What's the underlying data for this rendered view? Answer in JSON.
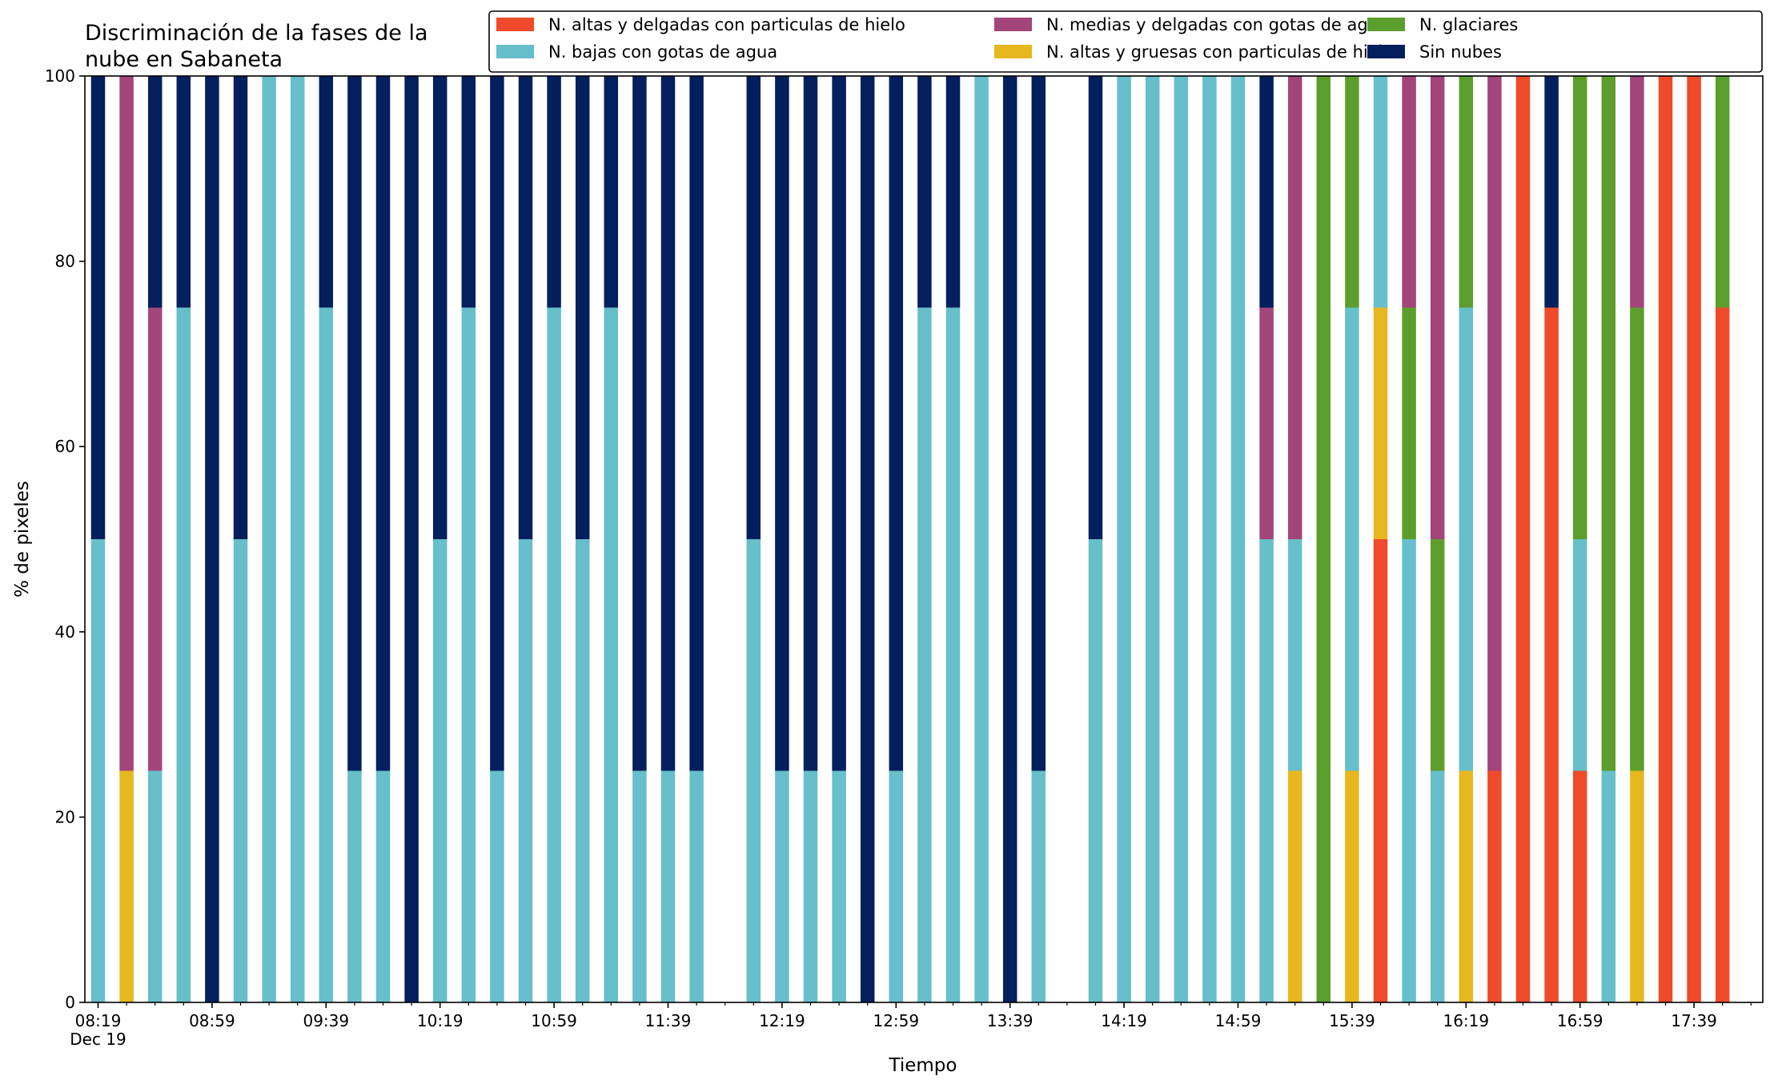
{
  "chart_data": {
    "type": "bar",
    "stacked": true,
    "title_lines": [
      "Discriminación de la fases de la",
      "nube en Sabaneta"
    ],
    "xlabel": "Tiempo",
    "ylabel": "% de pixeles",
    "ylim": [
      0,
      100
    ],
    "yticks": [
      "0",
      "20",
      "40",
      "60",
      "80",
      "100"
    ],
    "date_label": "Dec 19",
    "x_tick_labels": [
      {
        "index": 0,
        "label": "08:19"
      },
      {
        "index": 4,
        "label": "08:59"
      },
      {
        "index": 8,
        "label": "09:39"
      },
      {
        "index": 12,
        "label": "10:19"
      },
      {
        "index": 16,
        "label": "10:59"
      },
      {
        "index": 20,
        "label": "11:39"
      },
      {
        "index": 24,
        "label": "12:19"
      },
      {
        "index": 28,
        "label": "12:59"
      },
      {
        "index": 32,
        "label": "13:39"
      },
      {
        "index": 36,
        "label": "14:19"
      },
      {
        "index": 40,
        "label": "14:59"
      },
      {
        "index": 44,
        "label": "15:39"
      },
      {
        "index": 48,
        "label": "16:19"
      },
      {
        "index": 52,
        "label": "16:59"
      },
      {
        "index": 56,
        "label": "17:39"
      }
    ],
    "n_slots": 59,
    "grid": false,
    "legend_position": "top-right",
    "series": [
      {
        "name": "N. altas y delgadas con particulas de hielo",
        "color": "#ef4a2a"
      },
      {
        "name": "N. altas y gruesas con particulas de hielo",
        "color": "#e6b71e"
      },
      {
        "name": "N. bajas con gotas de agua",
        "color": "#66bfca"
      },
      {
        "name": "N. glaciares",
        "color": "#5c9e2c"
      },
      {
        "name": "N. medias y delgadas con gotas de agua",
        "color": "#a1457a"
      },
      {
        "name": "Sin nubes",
        "color": "#031f5e"
      }
    ],
    "legend_order": [
      0,
      2,
      4,
      1,
      3,
      5
    ],
    "bars": [
      {
        "index": 0,
        "values": [
          0,
          0,
          50,
          0,
          0,
          50
        ]
      },
      {
        "index": 1,
        "values": [
          0,
          25,
          0,
          0,
          75,
          0
        ]
      },
      {
        "index": 2,
        "values": [
          0,
          0,
          25,
          0,
          50,
          25
        ]
      },
      {
        "index": 3,
        "values": [
          0,
          0,
          75,
          0,
          0,
          25
        ]
      },
      {
        "index": 4,
        "values": [
          0,
          0,
          0,
          0,
          0,
          100
        ]
      },
      {
        "index": 5,
        "values": [
          0,
          0,
          50,
          0,
          0,
          50
        ]
      },
      {
        "index": 6,
        "values": [
          0,
          0,
          100,
          0,
          0,
          0
        ]
      },
      {
        "index": 7,
        "values": [
          0,
          0,
          100,
          0,
          0,
          0
        ]
      },
      {
        "index": 8,
        "values": [
          0,
          0,
          75,
          0,
          0,
          25
        ]
      },
      {
        "index": 9,
        "values": [
          0,
          0,
          25,
          0,
          0,
          75
        ]
      },
      {
        "index": 10,
        "values": [
          0,
          0,
          25,
          0,
          0,
          75
        ]
      },
      {
        "index": 11,
        "values": [
          0,
          0,
          0,
          0,
          0,
          100
        ]
      },
      {
        "index": 12,
        "values": [
          0,
          0,
          50,
          0,
          0,
          50
        ]
      },
      {
        "index": 13,
        "values": [
          0,
          0,
          75,
          0,
          0,
          25
        ]
      },
      {
        "index": 14,
        "values": [
          0,
          0,
          25,
          0,
          0,
          75
        ]
      },
      {
        "index": 15,
        "values": [
          0,
          0,
          50,
          0,
          0,
          50
        ]
      },
      {
        "index": 16,
        "values": [
          0,
          0,
          75,
          0,
          0,
          25
        ]
      },
      {
        "index": 17,
        "values": [
          0,
          0,
          50,
          0,
          0,
          50
        ]
      },
      {
        "index": 18,
        "values": [
          0,
          0,
          75,
          0,
          0,
          25
        ]
      },
      {
        "index": 19,
        "values": [
          0,
          0,
          25,
          0,
          0,
          75
        ]
      },
      {
        "index": 20,
        "values": [
          0,
          0,
          25,
          0,
          0,
          75
        ]
      },
      {
        "index": 21,
        "values": [
          0,
          0,
          25,
          0,
          0,
          75
        ]
      },
      {
        "index": 23,
        "values": [
          0,
          0,
          50,
          0,
          0,
          50
        ]
      },
      {
        "index": 24,
        "values": [
          0,
          0,
          25,
          0,
          0,
          75
        ]
      },
      {
        "index": 25,
        "values": [
          0,
          0,
          25,
          0,
          0,
          75
        ]
      },
      {
        "index": 26,
        "values": [
          0,
          0,
          25,
          0,
          0,
          75
        ]
      },
      {
        "index": 27,
        "values": [
          0,
          0,
          0,
          0,
          0,
          100
        ]
      },
      {
        "index": 28,
        "values": [
          0,
          0,
          25,
          0,
          0,
          75
        ]
      },
      {
        "index": 29,
        "values": [
          0,
          0,
          75,
          0,
          0,
          25
        ]
      },
      {
        "index": 30,
        "values": [
          0,
          0,
          75,
          0,
          0,
          25
        ]
      },
      {
        "index": 31,
        "values": [
          0,
          0,
          100,
          0,
          0,
          0
        ]
      },
      {
        "index": 32,
        "values": [
          0,
          0,
          0,
          0,
          0,
          100
        ]
      },
      {
        "index": 33,
        "values": [
          0,
          0,
          25,
          0,
          0,
          75
        ]
      },
      {
        "index": 35,
        "values": [
          0,
          0,
          50,
          0,
          0,
          50
        ]
      },
      {
        "index": 36,
        "values": [
          0,
          0,
          100,
          0,
          0,
          0
        ]
      },
      {
        "index": 37,
        "values": [
          0,
          0,
          100,
          0,
          0,
          0
        ]
      },
      {
        "index": 38,
        "values": [
          0,
          0,
          100,
          0,
          0,
          0
        ]
      },
      {
        "index": 39,
        "values": [
          0,
          0,
          100,
          0,
          0,
          0
        ]
      },
      {
        "index": 40,
        "values": [
          0,
          0,
          100,
          0,
          0,
          0
        ]
      },
      {
        "index": 41,
        "values": [
          0,
          0,
          50,
          0,
          25,
          25
        ]
      },
      {
        "index": 42,
        "values": [
          0,
          25,
          25,
          0,
          50,
          0
        ]
      },
      {
        "index": 43,
        "values": [
          0,
          0,
          0,
          100,
          0,
          0
        ]
      },
      {
        "index": 44,
        "values": [
          0,
          25,
          50,
          25,
          0,
          0
        ]
      },
      {
        "index": 45,
        "values": [
          50,
          25,
          25,
          0,
          0,
          0
        ]
      },
      {
        "index": 46,
        "values": [
          0,
          0,
          50,
          25,
          25,
          0
        ]
      },
      {
        "index": 47,
        "values": [
          0,
          0,
          25,
          25,
          50,
          0
        ]
      },
      {
        "index": 48,
        "values": [
          0,
          25,
          50,
          25,
          0,
          0
        ]
      },
      {
        "index": 49,
        "values": [
          25,
          0,
          0,
          0,
          75,
          0
        ]
      },
      {
        "index": 50,
        "values": [
          100,
          0,
          0,
          0,
          0,
          0
        ]
      },
      {
        "index": 51,
        "values": [
          75,
          0,
          0,
          0,
          0,
          25
        ]
      },
      {
        "index": 52,
        "values": [
          25,
          0,
          25,
          50,
          0,
          0
        ]
      },
      {
        "index": 53,
        "values": [
          0,
          0,
          25,
          75,
          0,
          0
        ]
      },
      {
        "index": 54,
        "values": [
          0,
          25,
          0,
          50,
          25,
          0
        ]
      },
      {
        "index": 55,
        "values": [
          100,
          0,
          0,
          0,
          0,
          0
        ]
      },
      {
        "index": 56,
        "values": [
          100,
          0,
          0,
          0,
          0,
          0
        ]
      },
      {
        "index": 57,
        "values": [
          75,
          0,
          0,
          25,
          0,
          0
        ]
      }
    ]
  }
}
